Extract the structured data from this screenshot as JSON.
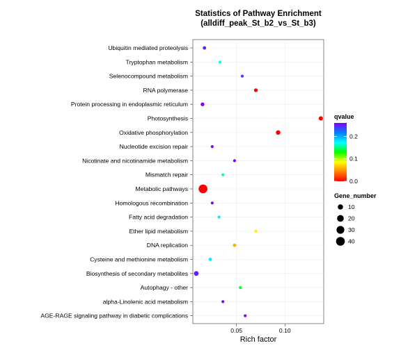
{
  "chart_data": {
    "type": "scatter",
    "title_line1": "Statistics of Pathway Enrichment",
    "title_line2": "(alldiff_peak_St_b2_vs_St_b3)",
    "xlabel": "Rich factor",
    "x_ticks": [
      0.05,
      0.1
    ],
    "x_tick_labels": [
      "0.05",
      "0.10"
    ],
    "xlim": [
      0.005,
      0.14
    ],
    "grid": true,
    "legend_position": "right",
    "color_legend": {
      "title": "qvalue",
      "range": [
        0,
        0.26
      ],
      "ticks": [
        0.0,
        0.1,
        0.2
      ],
      "tick_labels": [
        "0.0",
        "0.1",
        "0.2"
      ],
      "colors": [
        "#ff0000",
        "#ff8000",
        "#ffff00",
        "#00ff00",
        "#00ffff",
        "#0080ff",
        "#8000ff"
      ]
    },
    "size_legend": {
      "title": "Gene_number",
      "values": [
        10,
        20,
        30,
        40
      ],
      "labels": [
        "10",
        "20",
        "30",
        "40"
      ]
    },
    "points": [
      {
        "pathway": "Ubiquitin mediated proteolysis",
        "rich_factor": 0.017,
        "qvalue": 0.25,
        "gene_number": 2
      },
      {
        "pathway": "Tryptophan metabolism",
        "rich_factor": 0.033,
        "qvalue": 0.17,
        "gene_number": 1
      },
      {
        "pathway": "Selenocompound metabolism",
        "rich_factor": 0.056,
        "qvalue": 0.24,
        "gene_number": 1
      },
      {
        "pathway": "RNA polymerase",
        "rich_factor": 0.07,
        "qvalue": 0.0,
        "gene_number": 3
      },
      {
        "pathway": "Protein processing in endoplasmic reticulum",
        "rich_factor": 0.015,
        "qvalue": 0.26,
        "gene_number": 3
      },
      {
        "pathway": "Photosynthesis",
        "rich_factor": 0.137,
        "qvalue": 0.0,
        "gene_number": 5
      },
      {
        "pathway": "Oxidative phosphorylation",
        "rich_factor": 0.093,
        "qvalue": 0.0,
        "gene_number": 6
      },
      {
        "pathway": "Nucleotide excision repair",
        "rich_factor": 0.025,
        "qvalue": 0.26,
        "gene_number": 1
      },
      {
        "pathway": "Nicotinate and nicotinamide metabolism",
        "rich_factor": 0.048,
        "qvalue": 0.27,
        "gene_number": 1
      },
      {
        "pathway": "Mismatch repair",
        "rich_factor": 0.036,
        "qvalue": 0.16,
        "gene_number": 1
      },
      {
        "pathway": "Metabolic pathways",
        "rich_factor": 0.0155,
        "qvalue": 0.0,
        "gene_number": 40
      },
      {
        "pathway": "Homologous recombination",
        "rich_factor": 0.025,
        "qvalue": 0.26,
        "gene_number": 1
      },
      {
        "pathway": "Fatty acid degradation",
        "rich_factor": 0.032,
        "qvalue": 0.18,
        "gene_number": 1
      },
      {
        "pathway": "Ether lipid metabolism",
        "rich_factor": 0.07,
        "qvalue": 0.08,
        "gene_number": 1
      },
      {
        "pathway": "DNA replication",
        "rich_factor": 0.048,
        "qvalue": 0.06,
        "gene_number": 2
      },
      {
        "pathway": "Cysteine and methionine metabolism",
        "rich_factor": 0.023,
        "qvalue": 0.18,
        "gene_number": 2
      },
      {
        "pathway": "Biosynthesis of secondary metabolites",
        "rich_factor": 0.0085,
        "qvalue": 0.25,
        "gene_number": 7
      },
      {
        "pathway": "Autophagy - other",
        "rich_factor": 0.054,
        "qvalue": 0.14,
        "gene_number": 1
      },
      {
        "pathway": "alpha-Linolenic acid metabolism",
        "rich_factor": 0.036,
        "qvalue": 0.26,
        "gene_number": 1
      },
      {
        "pathway": "AGE-RAGE signaling pathway in diabetic complications",
        "rich_factor": 0.059,
        "qvalue": 0.26,
        "gene_number": 1
      }
    ]
  }
}
